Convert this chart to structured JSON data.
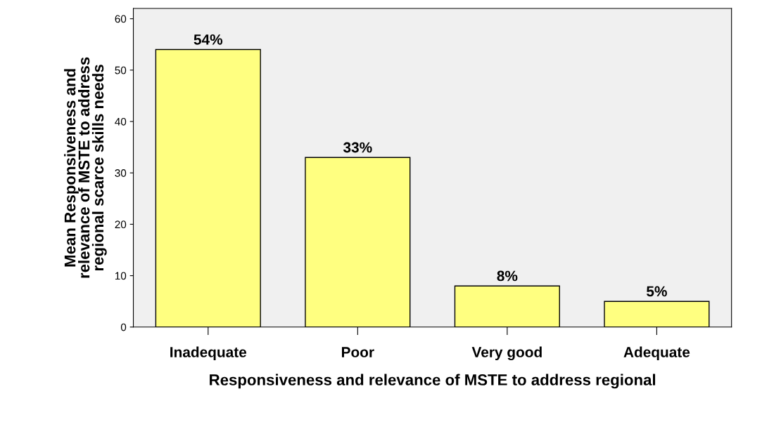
{
  "chart_data": {
    "type": "bar",
    "xlabel": "Responsiveness and relevance of MSTE to address regional",
    "ylabel": "Mean Responsiveness and\nrelevance of MSTE to address\nregional scarce skills needs",
    "categories": [
      "Inadequate",
      "Poor",
      "Very good",
      "Adequate"
    ],
    "values": [
      54,
      33,
      8,
      5
    ],
    "value_labels": [
      "54%",
      "33%",
      "8%",
      "5%"
    ],
    "color": "#ffff80",
    "ylim": [
      0,
      62
    ],
    "yticks": [
      0,
      10,
      20,
      30,
      40,
      50,
      60
    ],
    "grid": false,
    "legend": false
  }
}
